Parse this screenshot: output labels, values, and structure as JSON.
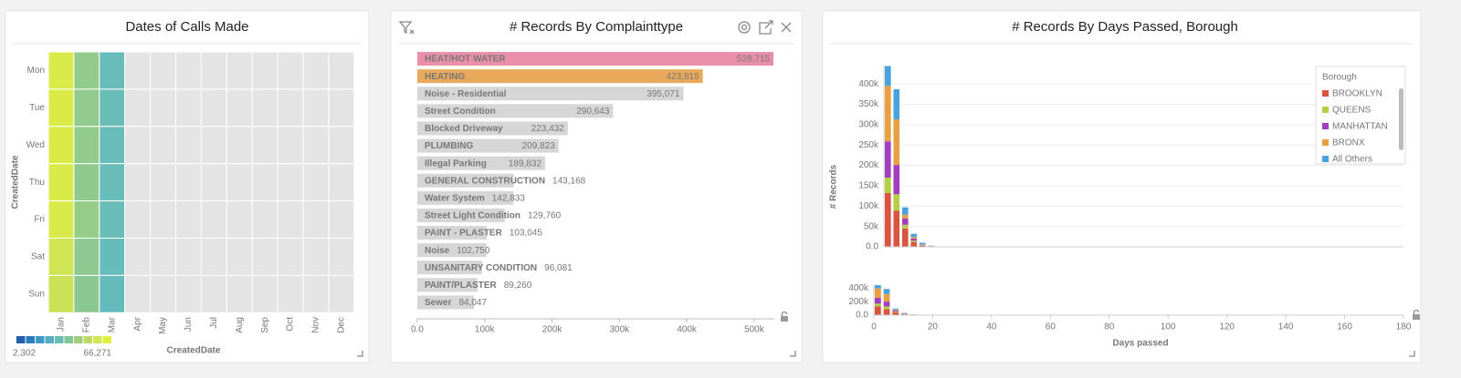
{
  "chart_data": [
    {
      "type": "heatmap",
      "title": "Dates of Calls Made",
      "x_label": "CreatedDate",
      "y_label": "CreatedDate",
      "x_categories": [
        "Jan",
        "Feb",
        "Mar",
        "Apr",
        "May",
        "Jun",
        "Jul",
        "Aug",
        "Sep",
        "Oct",
        "Nov",
        "Dec"
      ],
      "y_categories": [
        "Mon",
        "Tue",
        "Wed",
        "Thu",
        "Fri",
        "Sat",
        "Sun"
      ],
      "values": [
        [
          62500,
          42000,
          31000,
          null,
          null,
          null,
          null,
          null,
          null,
          null,
          null,
          null
        ],
        [
          63000,
          41500,
          31500,
          null,
          null,
          null,
          null,
          null,
          null,
          null,
          null,
          null
        ],
        [
          63000,
          42000,
          31000,
          null,
          null,
          null,
          null,
          null,
          null,
          null,
          null,
          null
        ],
        [
          62500,
          41000,
          31000,
          null,
          null,
          null,
          null,
          null,
          null,
          null,
          null,
          null
        ],
        [
          62000,
          42500,
          31500,
          null,
          null,
          null,
          null,
          null,
          null,
          null,
          null,
          null
        ],
        [
          58500,
          40500,
          30500,
          null,
          null,
          null,
          null,
          null,
          null,
          null,
          null,
          null
        ],
        [
          57000,
          40000,
          30000,
          null,
          null,
          null,
          null,
          null,
          null,
          null,
          null,
          null
        ]
      ],
      "colors": [
        "#1f5fa6",
        "#2b7bba",
        "#3f97c4",
        "#56adc3",
        "#67bcba",
        "#82c59a",
        "#9fcf7e",
        "#bcd964",
        "#d2e650",
        "#e1f040"
      ],
      "empty_color": "#e4e4e4",
      "color_range": [
        {
          "value": 2302,
          "label": "2,302"
        },
        {
          "value": 66271,
          "label": "66,271"
        }
      ]
    },
    {
      "type": "bar",
      "orientation": "horizontal",
      "title": "# Records By Complainttype",
      "categories": [
        "HEAT/HOT WATER",
        "HEATING",
        "Noise - Residential",
        "Street Condition",
        "Blocked Driveway",
        "PLUMBING",
        "Illegal Parking",
        "GENERAL CONSTRUCTION",
        "Water System",
        "Street Light Condition",
        "PAINT - PLASTER",
        "Noise",
        "UNSANITARY CONDITION",
        "PAINT/PLASTER",
        "Sewer"
      ],
      "values": [
        528715,
        423815,
        395071,
        290643,
        223432,
        209823,
        189832,
        143168,
        142833,
        129760,
        103045,
        102750,
        96081,
        89260,
        84047
      ],
      "value_labels": [
        "528,715",
        "423,815",
        "395,071",
        "290,643",
        "223,432",
        "209,823",
        "189,832",
        "143,168",
        "142,833",
        "129,760",
        "103,045",
        "102,750",
        "96,081",
        "89,260",
        "84,047"
      ],
      "colors": [
        "#e98fab",
        "#e8a95a",
        "#d6d6d6",
        "#d6d6d6",
        "#d6d6d6",
        "#d6d6d6",
        "#d6d6d6",
        "#d6d6d6",
        "#d6d6d6",
        "#d6d6d6",
        "#d6d6d6",
        "#d6d6d6",
        "#d6d6d6",
        "#d6d6d6",
        "#d6d6d6"
      ],
      "xlim": [
        0,
        530000
      ],
      "xticks": [
        {
          "value": 0,
          "label": "0.0"
        },
        {
          "value": 100000,
          "label": "100k"
        },
        {
          "value": 200000,
          "label": "200k"
        },
        {
          "value": 300000,
          "label": "300k"
        },
        {
          "value": 400000,
          "label": "400k"
        },
        {
          "value": 500000,
          "label": "500k"
        }
      ]
    },
    {
      "type": "histogram",
      "title": "# Records By Days Passed, Borough",
      "x_label": "Days passed",
      "y_label": "# Records",
      "legend_title": "Borough",
      "legend": "top-right",
      "grid": true,
      "bins": [
        0,
        3,
        6,
        9,
        12,
        15,
        18
      ],
      "series": [
        {
          "name": "BROOKLYN",
          "color": "#d9553f",
          "values": [
            132000,
            89000,
            45000,
            12000,
            3000,
            1000
          ]
        },
        {
          "name": "QUEENS",
          "color": "#b5cf45",
          "values": [
            38000,
            40000,
            9000,
            3000,
            1000,
            300
          ]
        },
        {
          "name": "MANHATTAN",
          "color": "#a13fc0",
          "values": [
            89000,
            72000,
            16000,
            5000,
            1000,
            400
          ]
        },
        {
          "name": "BRONX",
          "color": "#e8a040",
          "values": [
            136000,
            112000,
            9000,
            4000,
            1000,
            300
          ]
        },
        {
          "name": "All Others",
          "color": "#4aa3df",
          "values": [
            49000,
            74000,
            18000,
            8000,
            4000,
            1000
          ]
        }
      ],
      "xlim": [
        0,
        180
      ],
      "xticks": [
        0,
        20,
        40,
        60,
        80,
        100,
        120,
        140,
        160,
        180
      ],
      "ylim": [
        0,
        445000
      ],
      "yticks": [
        {
          "value": 0,
          "label": "0.0"
        },
        {
          "value": 50000,
          "label": "50k"
        },
        {
          "value": 100000,
          "label": "100k"
        },
        {
          "value": 150000,
          "label": "150k"
        },
        {
          "value": 200000,
          "label": "200k"
        },
        {
          "value": 250000,
          "label": "250k"
        },
        {
          "value": 300000,
          "label": "300k"
        },
        {
          "value": 350000,
          "label": "350k"
        },
        {
          "value": 400000,
          "label": "400k"
        }
      ],
      "brush_yticks": [
        {
          "value": 0,
          "label": "0.0"
        },
        {
          "value": 200000,
          "label": "200k"
        },
        {
          "value": 400000,
          "label": "400k"
        }
      ]
    }
  ]
}
